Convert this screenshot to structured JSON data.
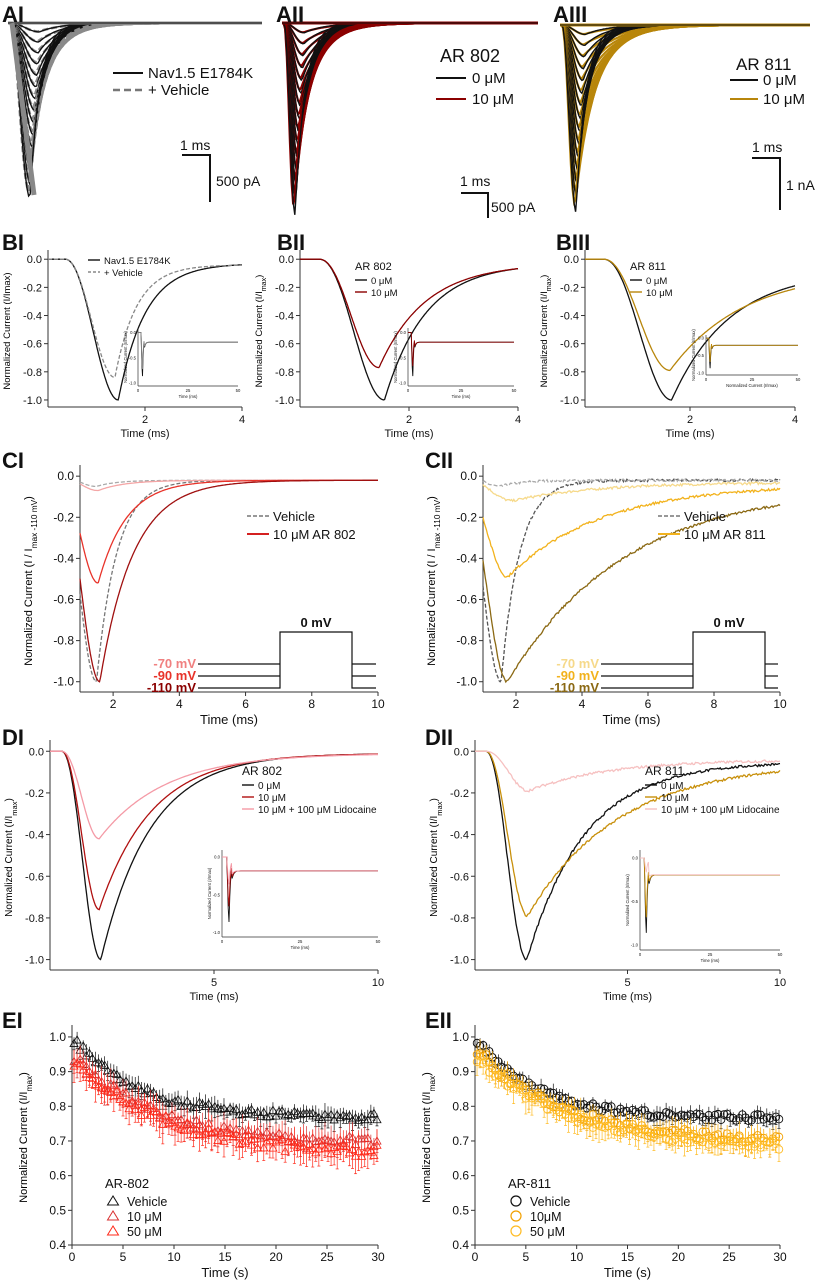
{
  "figure": {
    "AI": {
      "label": "AI",
      "legend": [
        "Nav1.5 E1784K",
        "+ Vehicle"
      ],
      "scale": {
        "t": "1 ms",
        "i": "500 pA"
      }
    },
    "AII": {
      "label": "AII",
      "title": "AR 802",
      "legend": [
        "0 μM",
        "10 μM"
      ],
      "scale": {
        "t": "1 ms",
        "i": "500 pA"
      }
    },
    "AIII": {
      "label": "AIII",
      "title": "AR 811",
      "legend": [
        "0 μM",
        "10 μM"
      ],
      "scale": {
        "t": "1 ms",
        "i": "1 nA"
      }
    }
  },
  "colors": {
    "black": "#111111",
    "vehicle": "#888888",
    "ar802": "#8b0000",
    "ar811": "#b8860b",
    "red": "#e8332a",
    "gold": "#f2b21c",
    "pink": "#f4a6a6",
    "lightgold": "#f6d98a",
    "darkgold": "#8b6914",
    "lidoPink": "#f6c0c0",
    "ebRed": "#ff2a1a",
    "ebOrange": "#ffaa00"
  },
  "chart_data": [
    {
      "id": "BI",
      "label": "BI",
      "type": "line",
      "xlabel": "Time (ms)",
      "ylabel": "Normalized Current (I/Imax)",
      "xlim": [
        0,
        4
      ],
      "ylim": [
        -1.05,
        0.03
      ],
      "xticks": [
        2,
        4
      ],
      "yticks": [
        0,
        -0.2,
        -0.4,
        -0.6,
        -0.8,
        -1.0
      ],
      "yticklabels": [
        "0.0",
        "-0.2",
        "-0.4",
        "-0.6",
        "-0.8",
        "-1.0"
      ],
      "series": [
        {
          "name": "Nav1.5 E1784K",
          "color": "#111111",
          "dash": false,
          "peak": -1.0,
          "tpeak": 1.45,
          "tau": 0.55,
          "rise": 0.35,
          "ss": -0.03
        },
        {
          "name": "+ Vehicle",
          "color": "#888888",
          "dash": true,
          "peak": -0.84,
          "tpeak": 1.38,
          "tau": 0.45,
          "rise": 0.32,
          "ss": -0.04
        }
      ],
      "legendTitle": "",
      "inset": {
        "xlabel": "Time (ms)",
        "ylabel": "Normalized Current (I/Imax)",
        "xticks": [
          "0",
          "25",
          "50"
        ],
        "yticks": [
          "0.0",
          "-0.5",
          "-1.0"
        ]
      }
    },
    {
      "id": "BII",
      "label": "BII",
      "type": "line",
      "xlabel": "Time (ms)",
      "ylabel": "Normalized Current (I/I",
      "ylabelSub": "max",
      "ylabelEnd": ")",
      "xlim": [
        0,
        4
      ],
      "ylim": [
        -1.05,
        0.03
      ],
      "xticks": [
        2,
        4
      ],
      "yticks": [
        0,
        -0.2,
        -0.4,
        -0.6,
        -0.8,
        -1.0
      ],
      "yticklabels": [
        "0.0",
        "-0.2",
        "-0.4",
        "-0.6",
        "-0.8",
        "-1.0"
      ],
      "legendTitle": "AR 802",
      "series": [
        {
          "name": "0 μM",
          "color": "#111111",
          "dash": false,
          "peak": -1.0,
          "tpeak": 1.55,
          "tau": 0.75,
          "rise": 0.35,
          "ss": -0.03
        },
        {
          "name": "10 μM",
          "color": "#8b0000",
          "dash": false,
          "peak": -0.77,
          "tpeak": 1.45,
          "tau": 0.85,
          "rise": 0.35,
          "ss": -0.03
        }
      ],
      "inset": {
        "xlabel": "Time (ms)",
        "ylabel": "Normalized Current (I/Imax)",
        "xticks": [
          "0",
          "25",
          "50"
        ],
        "yticks": [
          "0.0",
          "-0.5",
          "-1.0"
        ]
      }
    },
    {
      "id": "BIII",
      "label": "BIII",
      "type": "line",
      "xlabel": "Time (ms)",
      "ylabel": "Normalized Current (I/I",
      "ylabelSub": "max",
      "ylabelEnd": ")",
      "xlim": [
        0,
        4
      ],
      "ylim": [
        -1.05,
        0.03
      ],
      "xticks": [
        2,
        4
      ],
      "yticks": [
        0,
        -0.2,
        -0.4,
        -0.6,
        -0.8,
        -1.0
      ],
      "yticklabels": [
        "0.0",
        "-0.2",
        "-0.4",
        "-0.6",
        "-0.8",
        "-1.0"
      ],
      "legendTitle": "AR 811",
      "series": [
        {
          "name": "0 μM",
          "color": "#111111",
          "dash": false,
          "peak": -1.0,
          "tpeak": 1.65,
          "tau": 1.1,
          "rise": 0.38,
          "ss": -0.08
        },
        {
          "name": "10 μM",
          "color": "#b8860b",
          "dash": false,
          "peak": -0.79,
          "tpeak": 1.62,
          "tau": 1.4,
          "rise": 0.38,
          "ss": -0.08
        }
      ],
      "inset": {
        "xlabel": "Normalized Current (I/Imax)",
        "ylabel": "Normalized Current (I/Imax)",
        "xticks": [
          "0",
          "25",
          "50"
        ],
        "yticks": [
          "0.0",
          "-0.5",
          "-1.0"
        ]
      }
    },
    {
      "id": "CI",
      "label": "CI",
      "type": "line",
      "xlabel": "Time (ms)",
      "ylabel": "Normalized Current (I / I",
      "ylabelSub": "max -110 mV",
      "ylabelEnd": ")",
      "xlim": [
        1,
        10
      ],
      "ylim": [
        -1.05,
        0.03
      ],
      "xticks": [
        2,
        4,
        6,
        8,
        10
      ],
      "yticks": [
        0,
        -0.2,
        -0.4,
        -0.6,
        -0.8,
        -1.0
      ],
      "yticklabels": [
        "0.0",
        "-0.2",
        "-0.4",
        "-0.6",
        "-0.8",
        "-1.0"
      ],
      "legend": [
        "Vehicle",
        "10 μM AR 802"
      ],
      "protocol": {
        "test": "0 mV",
        "holds": [
          "-70 mV",
          "-90 mV",
          "-110 mV"
        ],
        "holdColors": [
          "#f08080",
          "#e8332a",
          "#8b0000"
        ]
      },
      "series": [
        {
          "name": "Vehicle -110",
          "color": "#777777",
          "dash": true,
          "peak": -1.0,
          "tpeak": 1.5,
          "tau": 0.6,
          "rise": 0.25,
          "ss": -0.02
        },
        {
          "name": "Vehicle -70",
          "color": "#aaaaaa",
          "dash": true,
          "peak": -0.05,
          "tpeak": 1.5,
          "tau": 0.6,
          "rise": 0.25,
          "ss": -0.02
        },
        {
          "name": "AR802 -70",
          "color": "#f4a6a6",
          "dash": false,
          "peak": -0.07,
          "tpeak": 1.55,
          "tau": 0.8,
          "rise": 0.25,
          "ss": -0.02
        },
        {
          "name": "AR802 -90",
          "color": "#e8332a",
          "dash": false,
          "peak": -0.52,
          "tpeak": 1.55,
          "tau": 0.85,
          "rise": 0.25,
          "ss": -0.02
        },
        {
          "name": "AR802 -110",
          "color": "#a01010",
          "dash": false,
          "peak": -1.0,
          "tpeak": 1.6,
          "tau": 1.0,
          "rise": 0.28,
          "ss": -0.02
        }
      ]
    },
    {
      "id": "CII",
      "label": "CII",
      "type": "line",
      "xlabel": "Time (ms)",
      "ylabel": "Normalized Current (I / I",
      "ylabelSub": "max -110 mV",
      "ylabelEnd": ")",
      "xlim": [
        1,
        10
      ],
      "ylim": [
        -1.05,
        0.03
      ],
      "xticks": [
        2,
        4,
        6,
        8,
        10
      ],
      "yticks": [
        0,
        -0.2,
        -0.4,
        -0.6,
        -0.8,
        -1.0
      ],
      "yticklabels": [
        "0.0",
        "-0.2",
        "-0.4",
        "-0.6",
        "-0.8",
        "-1.0"
      ],
      "legend": [
        "Vehicle",
        "10 μM AR 811"
      ],
      "protocol": {
        "test": "0 mV",
        "holds": [
          "-70 mV",
          "-90 mV",
          "-110 mV"
        ],
        "holdColors": [
          "#f6d98a",
          "#f2b21c",
          "#8b6914"
        ]
      },
      "series": [
        {
          "name": "Vehicle -110",
          "color": "#555555",
          "dash": true,
          "peak": -1.0,
          "tpeak": 1.55,
          "tau": 0.55,
          "rise": 0.25,
          "ss": -0.02
        },
        {
          "name": "Vehicle -70",
          "color": "#aaaaaa",
          "dash": true,
          "peak": -0.05,
          "tpeak": 1.55,
          "tau": 0.6,
          "rise": 0.25,
          "ss": -0.02
        },
        {
          "name": "AR811 -70",
          "color": "#f6d98a",
          "dash": false,
          "peak": -0.12,
          "tpeak": 1.9,
          "tau": 2.5,
          "rise": 0.3,
          "ss": -0.03
        },
        {
          "name": "AR811 -90",
          "color": "#f2b21c",
          "dash": false,
          "peak": -0.49,
          "tpeak": 1.75,
          "tau": 2.8,
          "rise": 0.3,
          "ss": -0.04
        },
        {
          "name": "AR811 -110",
          "color": "#8b6914",
          "dash": false,
          "peak": -1.0,
          "tpeak": 1.75,
          "tau": 3.5,
          "rise": 0.3,
          "ss": -0.05
        }
      ]
    },
    {
      "id": "DI",
      "label": "DI",
      "type": "line",
      "xlabel": "Time (ms)",
      "ylabel": "Normalized Current (I/I",
      "ylabelSub": "max",
      "ylabelEnd": ")",
      "xlim": [
        0,
        10
      ],
      "ylim": [
        -1.05,
        0.03
      ],
      "xticks": [
        5,
        10
      ],
      "yticks": [
        0,
        -0.2,
        -0.4,
        -0.6,
        -0.8,
        -1.0
      ],
      "yticklabels": [
        "0.0",
        "-0.2",
        "-0.4",
        "-0.6",
        "-0.8",
        "-1.0"
      ],
      "legendTitle": "AR 802",
      "series": [
        {
          "name": "0 μM",
          "color": "#111111",
          "dash": false,
          "peak": -1.0,
          "tpeak": 1.55,
          "tau": 1.5,
          "rise": 0.35,
          "ss": -0.01
        },
        {
          "name": "10 μM",
          "color": "#b01010",
          "dash": false,
          "peak": -0.76,
          "tpeak": 1.5,
          "tau": 1.6,
          "rise": 0.35,
          "ss": -0.01
        },
        {
          "name": "10 μM + 100 μM Lidocaine",
          "color": "#f49aa6",
          "dash": false,
          "peak": -0.42,
          "tpeak": 1.5,
          "tau": 2.0,
          "rise": 0.35,
          "ss": -0.01
        }
      ],
      "inset": {
        "xlabel": "Time (ms)",
        "ylabel": "Normalized Current (I/Imax)",
        "xticks": [
          "0",
          "25",
          "50"
        ],
        "yticks": [
          "0.0",
          "-0.5",
          "-1.0"
        ]
      }
    },
    {
      "id": "DII",
      "label": "DII",
      "type": "line",
      "xlabel": "Time (ms)",
      "ylabel": "Normalized Current (I/I",
      "ylabelSub": "max",
      "ylabelEnd": ")",
      "xlim": [
        0,
        10
      ],
      "ylim": [
        -1.05,
        0.03
      ],
      "xticks": [
        5,
        10
      ],
      "yticks": [
        0,
        -0.2,
        -0.4,
        -0.6,
        -0.8,
        -1.0
      ],
      "yticklabels": [
        "0.0",
        "-0.2",
        "-0.4",
        "-0.6",
        "-0.8",
        "-1.0"
      ],
      "legendTitle": "AR 811",
      "series": [
        {
          "name": "0 μM",
          "color": "#111111",
          "dash": false,
          "peak": -1.0,
          "tpeak": 1.7,
          "tau": 1.9,
          "rise": 0.38,
          "ss": -0.05
        },
        {
          "name": "10 μM",
          "color": "#c8900c",
          "dash": false,
          "peak": -0.79,
          "tpeak": 1.72,
          "tau": 3.0,
          "rise": 0.38,
          "ss": -0.05
        },
        {
          "name": "10 μM + 100 μM Lidocaine",
          "color": "#f6c0c0",
          "dash": false,
          "peak": -0.19,
          "tpeak": 1.75,
          "tau": 2.6,
          "rise": 0.38,
          "ss": -0.04
        }
      ],
      "inset": {
        "xlabel": "Time (ms)",
        "ylabel": "Normalized Current (I/Imax)",
        "xticks": [
          "0",
          "25",
          "50"
        ],
        "yticks": [
          "0.0",
          "-0.5",
          "-1.0"
        ]
      }
    },
    {
      "id": "EI",
      "label": "EI",
      "type": "scatter",
      "xlabel": "Time (s)",
      "ylabel": "Normalized Current (I/I",
      "ylabelSub": "max",
      "ylabelEnd": ")",
      "xlim": [
        0,
        30
      ],
      "ylim": [
        0.4,
        1.02
      ],
      "xticks": [
        0,
        5,
        10,
        15,
        20,
        25,
        30
      ],
      "yticks": [
        0.4,
        0.5,
        0.6,
        0.7,
        0.8,
        0.9,
        1.0
      ],
      "yticklabels": [
        "0.4",
        "0.5",
        "0.6",
        "0.7",
        "0.8",
        "0.9",
        "1.0"
      ],
      "marker": "triangle",
      "legendTitle": "AR-802",
      "series": [
        {
          "name": "Vehicle",
          "color": "#111111",
          "y0": 1.0,
          "yinf": 0.765,
          "tau": 6.5,
          "err": 0.025,
          "noise": 0.012
        },
        {
          "name": "10 μM",
          "color": "#d83030",
          "y0": 0.95,
          "yinf": 0.69,
          "tau": 8.0,
          "err": 0.035,
          "noise": 0.015
        },
        {
          "name": "50 μM",
          "color": "#ff2a1a",
          "y0": 0.94,
          "yinf": 0.66,
          "tau": 9.0,
          "err": 0.04,
          "noise": 0.018
        }
      ]
    },
    {
      "id": "EII",
      "label": "EII",
      "type": "scatter",
      "xlabel": "Time (s)",
      "ylabel": "Normalized Current (I/I",
      "ylabelSub": "max",
      "ylabelEnd": ")",
      "xlim": [
        0,
        30
      ],
      "ylim": [
        0.4,
        1.02
      ],
      "xticks": [
        0,
        5,
        10,
        15,
        20,
        25,
        30
      ],
      "yticks": [
        0.4,
        0.5,
        0.6,
        0.7,
        0.8,
        0.9,
        1.0
      ],
      "yticklabels": [
        "0.4",
        "0.5",
        "0.6",
        "0.7",
        "0.8",
        "0.9",
        "1.0"
      ],
      "marker": "circle",
      "legendTitle": "AR-811",
      "series": [
        {
          "name": "Vehicle",
          "color": "#111111",
          "y0": 1.0,
          "yinf": 0.765,
          "tau": 6.0,
          "err": 0.02,
          "noise": 0.01
        },
        {
          "name": "10μM",
          "color": "#f2a000",
          "y0": 0.97,
          "yinf": 0.7,
          "tau": 8.0,
          "err": 0.03,
          "noise": 0.014
        },
        {
          "name": "50 μM",
          "color": "#ffbb22",
          "y0": 0.95,
          "yinf": 0.68,
          "tau": 9.0,
          "err": 0.035,
          "noise": 0.016
        }
      ]
    }
  ]
}
